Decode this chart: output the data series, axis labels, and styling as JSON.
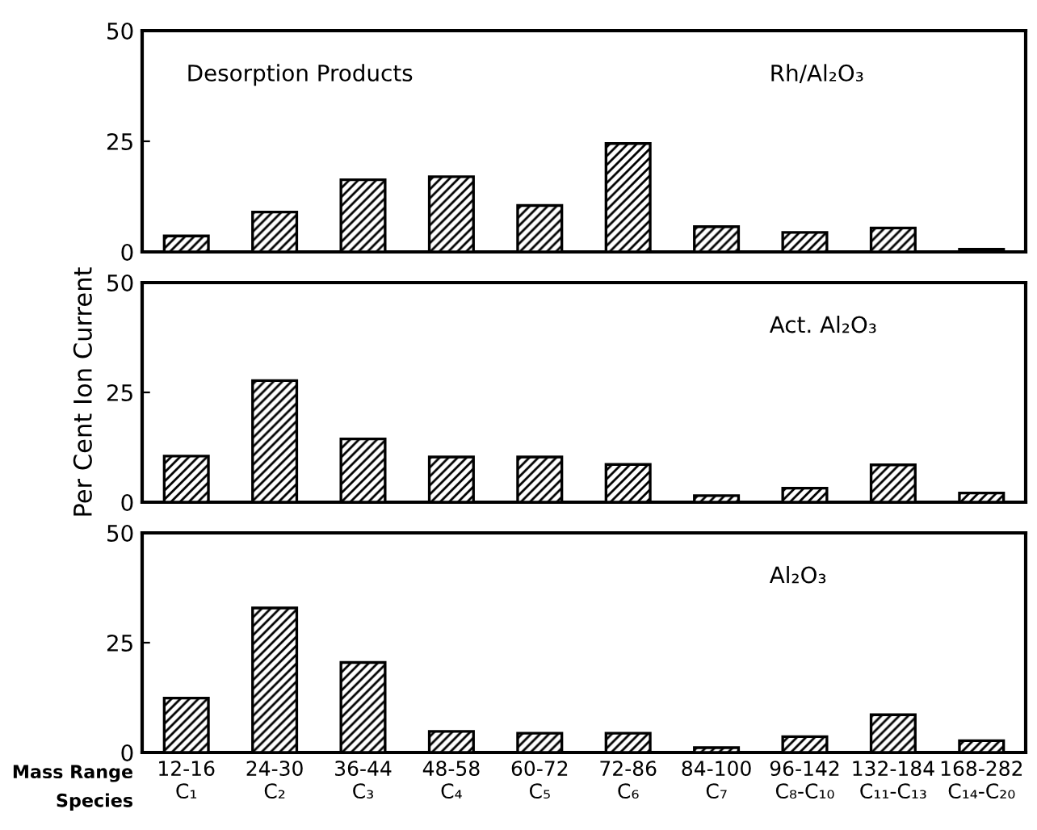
{
  "chart_data": [
    {
      "type": "bar",
      "categories": [
        null,
        null,
        null,
        null,
        null,
        null,
        null,
        null,
        null,
        null
      ],
      "values": [
        3.6,
        9,
        16.3,
        17,
        10.5,
        24.5,
        5.7,
        4.4,
        5.4,
        0.6
      ],
      "color": "#000000",
      "ylim": [
        0,
        50
      ],
      "yticks": [
        0,
        25,
        50
      ],
      "grid": false,
      "legend": false,
      "annotations": [
        "Desorption Products",
        "Rh/Al₂O₃"
      ]
    },
    {
      "type": "bar",
      "categories": [
        null,
        null,
        null,
        null,
        null,
        null,
        null,
        null,
        null,
        null
      ],
      "values": [
        10.5,
        27.7,
        14.4,
        10.3,
        10.3,
        8.6,
        1.5,
        3.2,
        8.5,
        2.1
      ],
      "color": "#000000",
      "ylim": [
        0,
        50
      ],
      "yticks": [
        0,
        25,
        50
      ],
      "grid": false,
      "legend": false,
      "ylabel": "Per Cent Ion Current",
      "annotations": [
        "Act. Al₂O₃"
      ]
    },
    {
      "type": "bar",
      "categories": [
        "12-16\nC₁",
        "24-30\nC₂",
        "36-44\nC₃",
        "48-58\nC₄",
        "60-72\nC₅",
        "72-86\nC₆",
        "84-100\nC₇",
        "96-142\nC₈-C₁₀",
        "132-184\nC₁₁-C₁₃",
        "168-282\nC₁₄-C₂₀"
      ],
      "values": [
        12.4,
        32.9,
        20.5,
        4.8,
        4.4,
        4.4,
        1.1,
        3.6,
        8.6,
        2.7
      ],
      "color": "#000000",
      "ylim": [
        0,
        50
      ],
      "yticks": [
        0,
        25,
        50
      ],
      "grid": false,
      "legend": false,
      "annotations": [
        "Al₂O₃",
        "Mass Range",
        "Species"
      ]
    }
  ]
}
